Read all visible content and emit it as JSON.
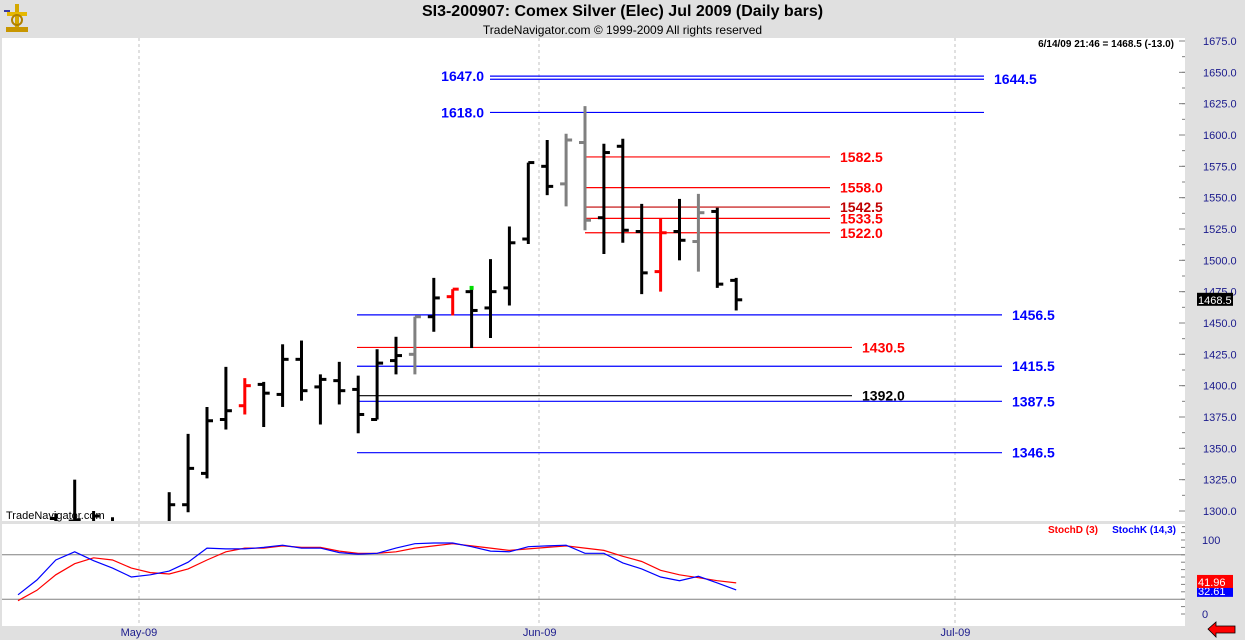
{
  "header": {
    "title": "SI3-200907:  Comex Silver (Elec) Jul 2009  (Daily bars)",
    "subtitle": "TradeNavigator.com © 1999-2009 All rights reserved",
    "status": "6/14/09 21:46 = 1468.5 (-13.0)",
    "watermark": "TradeNavigator.com"
  },
  "colors": {
    "up": "#000000",
    "gray": "#808080",
    "red": "#ff0000",
    "blue": "#0000ff",
    "darkred": "#c00000"
  },
  "chart_data": [
    {
      "type": "ohlc",
      "title": "SI3-200907: Comex Silver (Elec) Jul 2009 (Daily bars)",
      "ylim": [
        1287.5,
        1680
      ],
      "yticks": [
        1300,
        1325,
        1350,
        1375,
        1400,
        1425,
        1450,
        1475,
        1500,
        1525,
        1550,
        1575,
        1600,
        1625,
        1650,
        1675
      ],
      "ytick_labels": [
        "1300.0",
        "1325.0",
        "1350.0",
        "1375.0",
        "1400.0",
        "1425.0",
        "1450.0",
        "1475.0",
        "1500.0",
        "1525.0",
        "1550.0",
        "1575.0",
        "1600.0",
        "1625.0",
        "1650.0",
        "1675.0"
      ],
      "x_labels": [
        {
          "label": "May-09",
          "index": 6.4
        },
        {
          "label": "Jun-09",
          "index": 27.6
        },
        {
          "label": "Jul-09",
          "index": 49.6
        }
      ],
      "last_price_label": "1468.5",
      "bars": [
        {
          "o": 1280,
          "h": 1290,
          "l": 1270,
          "c": 1285,
          "color": "up"
        },
        {
          "o": 1285,
          "h": 1292,
          "l": 1275,
          "c": 1288,
          "color": "up"
        },
        {
          "o": 1294,
          "h": 1298,
          "l": 1280,
          "c": 1290,
          "color": "up"
        },
        {
          "o": 1292,
          "h": 1325,
          "l": 1285,
          "c": 1293,
          "color": "up"
        },
        {
          "o": 1290,
          "h": 1300,
          "l": 1285,
          "c": 1296,
          "color": "up"
        },
        {
          "o": 1285,
          "h": 1295,
          "l": 1270,
          "c": 1280,
          "color": "up"
        },
        {
          "o": 1280,
          "h": 1292,
          "l": 1265,
          "c": 1275,
          "color": "up"
        },
        {
          "o": 1275,
          "h": 1290,
          "l": 1265,
          "c": 1288,
          "color": "up"
        },
        {
          "o": 1290,
          "h": 1315,
          "l": 1285,
          "c": 1305,
          "color": "up"
        },
        {
          "o": 1305,
          "h": 1361.5,
          "l": 1299,
          "c": 1334,
          "color": "up"
        },
        {
          "o": 1330,
          "h": 1383,
          "l": 1326,
          "c": 1372,
          "color": "up"
        },
        {
          "o": 1373,
          "h": 1415,
          "l": 1365,
          "c": 1380,
          "color": "up"
        },
        {
          "o": 1384,
          "h": 1406,
          "l": 1377,
          "c": 1400,
          "color": "red"
        },
        {
          "o": 1401,
          "h": 1403,
          "l": 1367,
          "c": 1394,
          "color": "up"
        },
        {
          "o": 1393,
          "h": 1433,
          "l": 1383,
          "c": 1421,
          "color": "up"
        },
        {
          "o": 1421,
          "h": 1436,
          "l": 1388,
          "c": 1396,
          "color": "up"
        },
        {
          "o": 1399,
          "h": 1409,
          "l": 1369,
          "c": 1405,
          "color": "up"
        },
        {
          "o": 1404,
          "h": 1419,
          "l": 1385,
          "c": 1396,
          "color": "up"
        },
        {
          "o": 1397,
          "h": 1408,
          "l": 1362,
          "c": 1377,
          "color": "up"
        },
        {
          "o": 1373,
          "h": 1429,
          "l": 1373,
          "c": 1418,
          "color": "up"
        },
        {
          "o": 1420,
          "h": 1439,
          "l": 1409,
          "c": 1424,
          "color": "up"
        },
        {
          "o": 1425,
          "h": 1455,
          "l": 1409,
          "c": 1455,
          "color": "gray"
        },
        {
          "o": 1455,
          "h": 1486,
          "l": 1443,
          "c": 1470,
          "color": "up"
        },
        {
          "o": 1471,
          "h": 1477,
          "l": 1456,
          "c": 1477,
          "color": "red"
        },
        {
          "o": 1475,
          "h": 1478,
          "l": 1430,
          "c": 1460,
          "color": "up",
          "marker": "#00dd00"
        },
        {
          "o": 1462,
          "h": 1501,
          "l": 1438,
          "c": 1475,
          "color": "up"
        },
        {
          "o": 1478,
          "h": 1527,
          "l": 1464,
          "c": 1514,
          "color": "up"
        },
        {
          "o": 1517,
          "h": 1578,
          "l": 1513,
          "c": 1578,
          "color": "up"
        },
        {
          "o": 1575,
          "h": 1596,
          "l": 1552,
          "c": 1559,
          "color": "up"
        },
        {
          "o": 1561,
          "h": 1601,
          "l": 1543,
          "c": 1596,
          "color": "gray"
        },
        {
          "o": 1594,
          "h": 1623,
          "l": 1524,
          "c": 1532,
          "color": "gray"
        },
        {
          "o": 1534,
          "h": 1593,
          "l": 1505,
          "c": 1586,
          "color": "up"
        },
        {
          "o": 1591,
          "h": 1597,
          "l": 1514,
          "c": 1524,
          "color": "up"
        },
        {
          "o": 1523,
          "h": 1545,
          "l": 1473,
          "c": 1490,
          "color": "up"
        },
        {
          "o": 1491,
          "h": 1533,
          "l": 1475,
          "c": 1522,
          "color": "red"
        },
        {
          "o": 1523,
          "h": 1549,
          "l": 1500,
          "c": 1516,
          "color": "up"
        },
        {
          "o": 1515,
          "h": 1553,
          "l": 1491,
          "c": 1538,
          "color": "gray"
        },
        {
          "o": 1539,
          "h": 1542,
          "l": 1478,
          "c": 1481,
          "color": "up"
        },
        {
          "o": 1484,
          "h": 1486,
          "l": 1460,
          "c": 1468.5,
          "color": "up"
        }
      ],
      "levels": [
        {
          "value": 1647.0,
          "label": "1647.0",
          "color": "blue",
          "group": "upper",
          "label_side": "left"
        },
        {
          "value": 1644.5,
          "label": "1644.5",
          "color": "blue",
          "group": "upper",
          "label_side": "right"
        },
        {
          "value": 1618.0,
          "label": "1618.0",
          "color": "blue",
          "group": "upper",
          "label_side": "left"
        },
        {
          "value": 1582.5,
          "label": "1582.5",
          "color": "red",
          "group": "mid",
          "label_side": "right"
        },
        {
          "value": 1558.0,
          "label": "1558.0",
          "color": "red",
          "group": "mid",
          "label_side": "right"
        },
        {
          "value": 1542.5,
          "label": "1542.5",
          "color": "darkred",
          "group": "mid",
          "label_side": "right"
        },
        {
          "value": 1533.5,
          "label": "1533.5",
          "color": "red",
          "group": "mid",
          "label_side": "right"
        },
        {
          "value": 1522.0,
          "label": "1522.0",
          "color": "red",
          "group": "mid",
          "label_side": "right"
        },
        {
          "value": 1456.5,
          "label": "1456.5",
          "color": "blue",
          "group": "lower",
          "label_side": "right"
        },
        {
          "value": 1430.5,
          "label": "1430.5",
          "color": "red",
          "group": "lowerShort",
          "label_side": "right"
        },
        {
          "value": 1415.5,
          "label": "1415.5",
          "color": "blue",
          "group": "lower",
          "label_side": "right"
        },
        {
          "value": 1392.0,
          "label": "1392.0",
          "color": "up",
          "group": "lowerShort",
          "label_side": "right"
        },
        {
          "value": 1387.5,
          "label": "1387.5",
          "color": "blue",
          "group": "lower",
          "label_side": "right"
        },
        {
          "value": 1346.5,
          "label": "1346.5",
          "color": "blue",
          "group": "lower",
          "label_side": "right"
        }
      ]
    },
    {
      "type": "line",
      "title": "Stochastic",
      "ylim": [
        0,
        100
      ],
      "yticks": [
        0,
        100
      ],
      "ytick_labels": [
        "0",
        "100"
      ],
      "reference_lines": [
        20,
        80
      ],
      "series": [
        {
          "name": "StochD (3)",
          "color": "#ff0000",
          "last_label": "41.96",
          "values": [
            18,
            32,
            53,
            68,
            76,
            73,
            62,
            56,
            54,
            61,
            73,
            84,
            89,
            89,
            92,
            90,
            90,
            85,
            82,
            82,
            84,
            89,
            92,
            95,
            92,
            89,
            86,
            88,
            90,
            92,
            89,
            86,
            78,
            71,
            59,
            53,
            49,
            45,
            41.96
          ]
        },
        {
          "name": "StochK (14,3)",
          "color": "#0000ff",
          "last_label": "32.61",
          "values": [
            26,
            46,
            73,
            84,
            72,
            62,
            50,
            53,
            58,
            70,
            89,
            88,
            88,
            90,
            93,
            89,
            89,
            83,
            81,
            82,
            89,
            95,
            96,
            96,
            91,
            85,
            84,
            91,
            92,
            93,
            82,
            82,
            69,
            61,
            50,
            45,
            51,
            42,
            32.61
          ]
        }
      ]
    }
  ]
}
